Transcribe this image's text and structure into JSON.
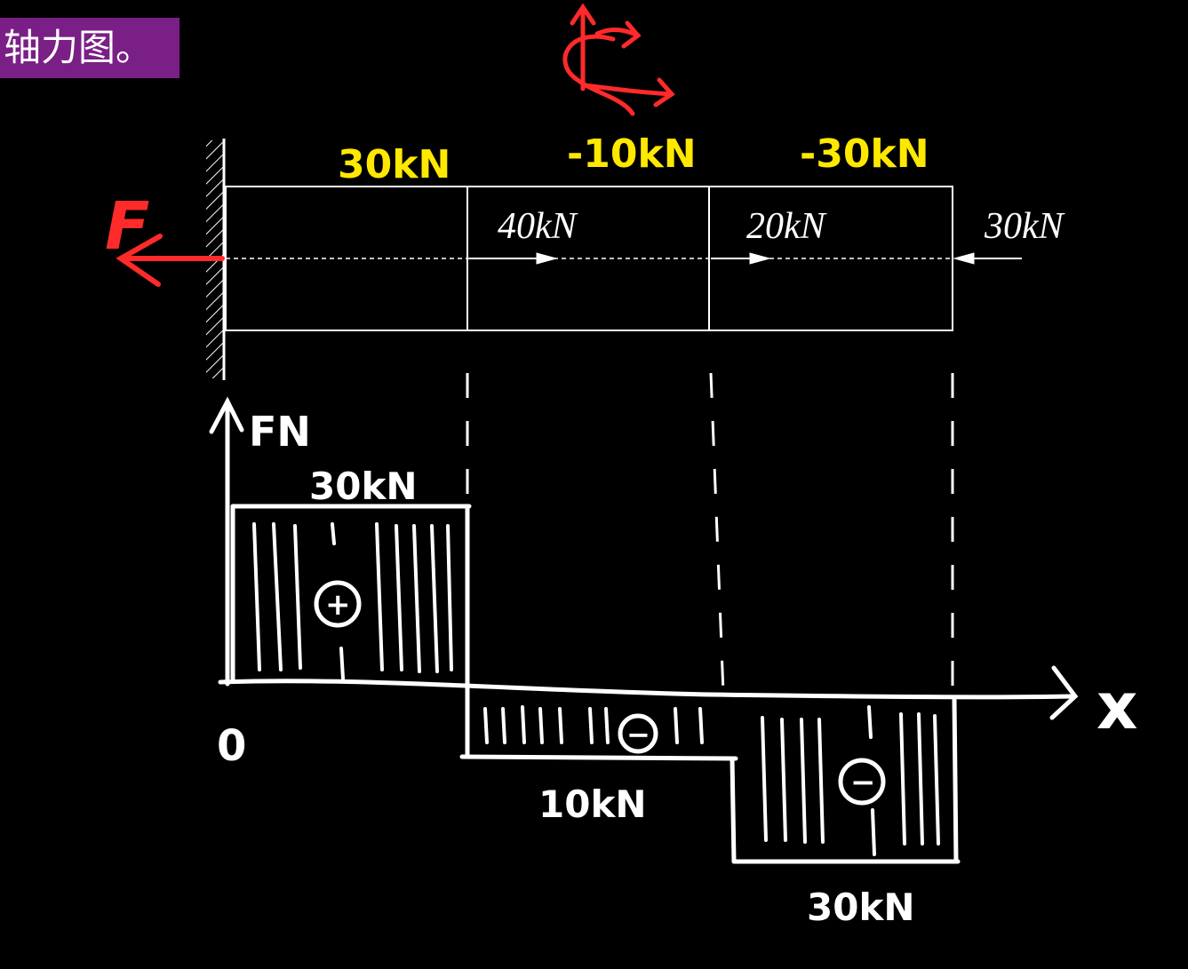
{
  "title": "轴力图。",
  "colors": {
    "background": "#000000",
    "title_badge": "#7a1f86",
    "segment_labels": "#ffe800",
    "reaction": "#ff2a2a",
    "lines": "#ffffff"
  },
  "bar": {
    "segment_forces": [
      "30kN",
      "-10kN",
      "-30kN"
    ],
    "applied_loads": [
      "40kN",
      "20kN",
      "30kN"
    ],
    "reaction_label": "F"
  },
  "diagram": {
    "axis_y_label": "FN",
    "axis_x_label": "x",
    "origin_label": "0",
    "value_labels": [
      "30kN",
      "10kN",
      "30kN"
    ],
    "signs": [
      "+",
      "−",
      "−"
    ]
  }
}
